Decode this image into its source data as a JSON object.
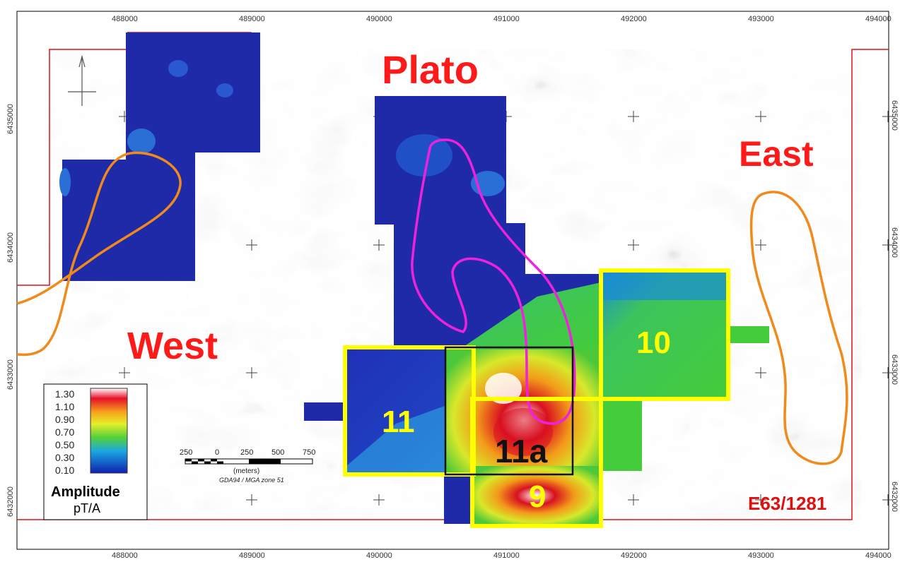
{
  "x_ticks": [
    "488000",
    "489000",
    "490000",
    "491000",
    "492000",
    "493000",
    "494000"
  ],
  "y_ticks": [
    "6435000",
    "6434000",
    "6433000",
    "6432000"
  ],
  "regions": {
    "plato": "Plato",
    "east": "East",
    "west": "West"
  },
  "blocks": {
    "b9": "9",
    "b10": "10",
    "b11": "11",
    "b11a": "11a"
  },
  "tenement": "E63/1281",
  "legend": {
    "values": [
      "1.30",
      "1.10",
      "0.90",
      "0.70",
      "0.50",
      "0.30",
      "0.10"
    ],
    "title": "Amplitude",
    "unit": "pT/A",
    "colors": [
      "#ffffff",
      "#e8102a",
      "#f7a21b",
      "#e6ee2a",
      "#54d13a",
      "#1aa8e0",
      "#1020b0"
    ]
  },
  "scale_bar": {
    "labels": [
      "250",
      "0",
      "250",
      "500",
      "750"
    ],
    "units": "(meters)",
    "projection": "GDA94 / MGA zone 51"
  },
  "colors": {
    "tenement_line": "#e01010",
    "region_text": "#ff1a1a",
    "block_outline": "#ffff00",
    "orange_outline": "#f08a1a",
    "magenta_outline": "#ee22dd",
    "em_dark": "#1f2aa8"
  }
}
